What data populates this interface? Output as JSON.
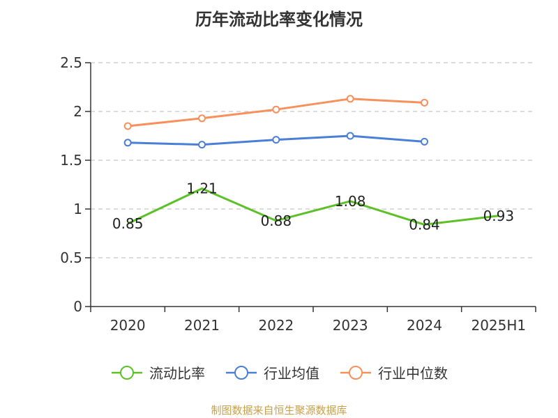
{
  "title": "历年流动比率变化情况",
  "source": "制图数据来自恒生聚源数据库",
  "chart_data": {
    "type": "line",
    "categories": [
      "2020",
      "2021",
      "2022",
      "2023",
      "2024",
      "2025H1"
    ],
    "ylim": [
      0,
      2.5
    ],
    "yticks": [
      "0",
      "0.5",
      "1",
      "1.5",
      "2",
      "2.5"
    ],
    "grid": true,
    "legend_position": "bottom",
    "series": [
      {
        "name": "流动比率",
        "color": "#5cc027",
        "markers": false,
        "labels": true,
        "values": [
          0.85,
          1.21,
          0.88,
          1.08,
          0.84,
          0.93
        ],
        "value_labels": [
          "0.85",
          "1.21",
          "0.88",
          "1.08",
          "0.84",
          "0.93"
        ]
      },
      {
        "name": "行业均值",
        "color": "#4a7fd8",
        "markers": true,
        "labels": false,
        "values": [
          1.68,
          1.66,
          1.71,
          1.75,
          1.69,
          null
        ]
      },
      {
        "name": "行业中位数",
        "color": "#f7905a",
        "markers": true,
        "labels": false,
        "values": [
          1.85,
          1.93,
          2.02,
          2.13,
          2.09,
          null
        ]
      }
    ]
  }
}
